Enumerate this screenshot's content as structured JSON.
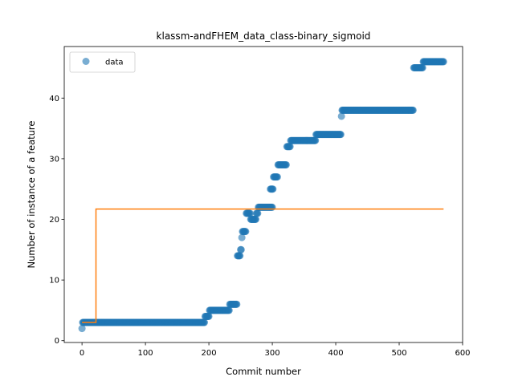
{
  "chart_data": {
    "type": "scatter",
    "title": "klassm-andFHEM_data_class-binary_sigmoid",
    "xlabel": "Commit number",
    "ylabel": "Number of instance of a feature",
    "xlim": [
      -28,
      600
    ],
    "ylim": [
      -0.3,
      48.5
    ],
    "xticks": [
      0,
      100,
      200,
      300,
      400,
      500,
      600
    ],
    "yticks": [
      0,
      10,
      20,
      30,
      40
    ],
    "grid": false,
    "legend": {
      "placement": "top-left",
      "entries": [
        "data"
      ]
    },
    "colors": {
      "data": "#1f77b4",
      "fit": "#ff7f0e"
    },
    "series": [
      {
        "name": "data",
        "kind": "scatter",
        "segments": [
          {
            "x_start": 0,
            "x_end": 0,
            "y": 2
          },
          {
            "x_start": 1,
            "x_end": 193,
            "y": 3
          },
          {
            "x_start": 194,
            "x_end": 200,
            "y": 4
          },
          {
            "x_start": 201,
            "x_end": 232,
            "y": 5
          },
          {
            "x_start": 233,
            "x_end": 244,
            "y": 6
          },
          {
            "x_start": 245,
            "x_end": 249,
            "y": 14
          },
          {
            "x_start": 250,
            "x_end": 251,
            "y": 15
          },
          {
            "x_start": 252,
            "x_end": 252,
            "y": 17
          },
          {
            "x_start": 253,
            "x_end": 258,
            "y": 18
          },
          {
            "x_start": 259,
            "x_end": 265,
            "y": 21
          },
          {
            "x_start": 266,
            "x_end": 274,
            "y": 20
          },
          {
            "x_start": 275,
            "x_end": 277,
            "y": 21
          },
          {
            "x_start": 278,
            "x_end": 300,
            "y": 22
          },
          {
            "x_start": 297,
            "x_end": 301,
            "y": 25
          },
          {
            "x_start": 302,
            "x_end": 308,
            "y": 27
          },
          {
            "x_start": 309,
            "x_end": 322,
            "y": 29
          },
          {
            "x_start": 323,
            "x_end": 328,
            "y": 32
          },
          {
            "x_start": 329,
            "x_end": 368,
            "y": 33
          },
          {
            "x_start": 369,
            "x_end": 408,
            "y": 34
          },
          {
            "x_start": 409,
            "x_end": 409,
            "y": 37
          },
          {
            "x_start": 410,
            "x_end": 522,
            "y": 38
          },
          {
            "x_start": 523,
            "x_end": 537,
            "y": 45
          },
          {
            "x_start": 538,
            "x_end": 570,
            "y": 46
          }
        ]
      },
      {
        "kind": "line",
        "points": [
          [
            0,
            3
          ],
          [
            22,
            3
          ],
          [
            22,
            21.7
          ],
          [
            570,
            21.7
          ]
        ]
      }
    ]
  }
}
